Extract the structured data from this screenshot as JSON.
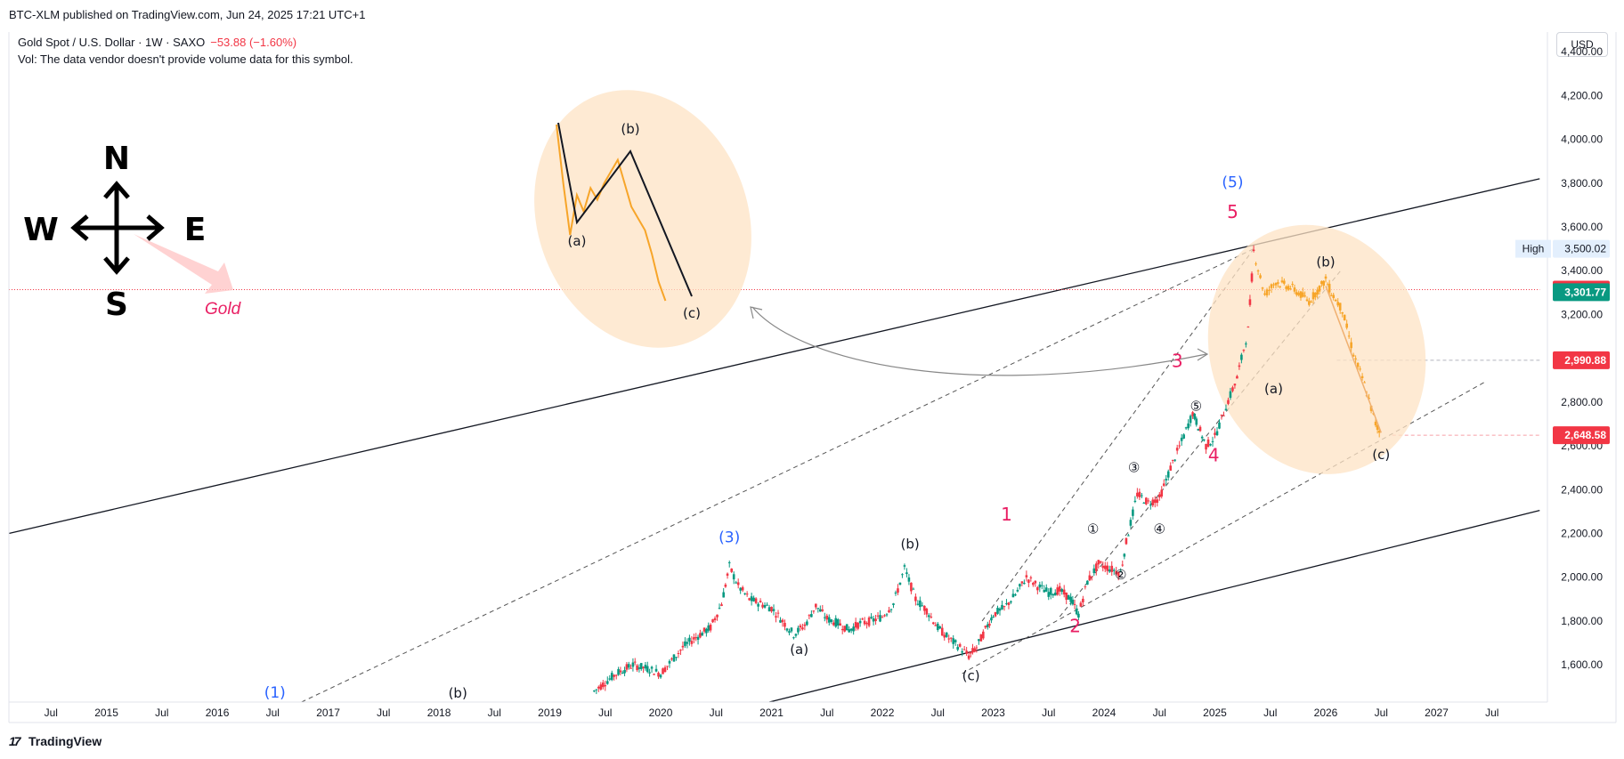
{
  "header": {
    "published": "BTC-XLM published on TradingView.com, Jun 24, 2025 17:21 UTC+1",
    "symbol": "Gold Spot / U.S. Dollar · 1W · SAXO",
    "change": "−53.88 (−1.60%)",
    "volume_note": "Vol: The data vendor doesn't provide volume data for this symbol.",
    "currency_button": "USD"
  },
  "footer": {
    "brand": "TradingView"
  },
  "compass": {
    "n": "N",
    "s": "S",
    "e": "E",
    "w": "W"
  },
  "gold_label": "Gold",
  "colors": {
    "up": "#089981",
    "down": "#f23645",
    "wave_red": "#e91e63",
    "wave_blue": "#2962ff",
    "ellipse": "#fde3c4",
    "orange_line": "#f7a529",
    "price_line_red": "#f23645",
    "price_line_green": "#089981"
  },
  "chart_data": {
    "type": "candlestick",
    "y_axis": {
      "ticks": [
        1600,
        1800,
        2000,
        2200,
        2400,
        2600,
        2800,
        3000,
        3200,
        3400,
        3600,
        3800,
        4000,
        4200,
        4400
      ],
      "tick_labels": [
        "1,600.00",
        "1,800.00",
        "2,000.00",
        "2,200.00",
        "2,400.00",
        "2,600.00",
        "2,800.00",
        "3,000.00",
        "3,200.00",
        "3,400.00",
        "3,600.00",
        "3,800.00",
        "4,000.00",
        "4,200.00",
        "4,400.00"
      ],
      "range": [
        1430,
        4490
      ]
    },
    "x_axis": {
      "tick_labels": [
        "Jul",
        "2015",
        "Jul",
        "2016",
        "Jul",
        "2017",
        "Jul",
        "2018",
        "Jul",
        "2019",
        "Jul",
        "2020",
        "Jul",
        "2021",
        "Jul",
        "2022",
        "Jul",
        "2023",
        "Jul",
        "2024",
        "Jul",
        "2025",
        "Jul",
        "2026",
        "Jul",
        "2027",
        "Jul"
      ],
      "range": [
        2014.12,
        2028.0
      ]
    },
    "price_labels": [
      {
        "label": "High",
        "value": 3500.02,
        "text": "3,500.02",
        "style": "high"
      },
      {
        "value": 3313.72,
        "text": "3,313.72",
        "style": "red"
      },
      {
        "value": 3301.77,
        "text": "3,301.77",
        "style": "green"
      },
      {
        "value": 2990.88,
        "text": "2,990.88",
        "style": "red"
      },
      {
        "value": 2648.58,
        "text": "2,648.58",
        "style": "red"
      }
    ],
    "price_path": [
      [
        2019.4,
        1480
      ],
      [
        2019.5,
        1520
      ],
      [
        2019.6,
        1560
      ],
      [
        2019.75,
        1600
      ],
      [
        2019.9,
        1580
      ],
      [
        2020.0,
        1560
      ],
      [
        2020.1,
        1620
      ],
      [
        2020.2,
        1680
      ],
      [
        2020.3,
        1720
      ],
      [
        2020.45,
        1770
      ],
      [
        2020.55,
        1880
      ],
      [
        2020.62,
        2050
      ],
      [
        2020.7,
        1960
      ],
      [
        2020.8,
        1900
      ],
      [
        2020.9,
        1880
      ],
      [
        2021.0,
        1860
      ],
      [
        2021.1,
        1800
      ],
      [
        2021.2,
        1740
      ],
      [
        2021.3,
        1780
      ],
      [
        2021.4,
        1870
      ],
      [
        2021.5,
        1810
      ],
      [
        2021.6,
        1790
      ],
      [
        2021.7,
        1760
      ],
      [
        2021.8,
        1790
      ],
      [
        2021.9,
        1800
      ],
      [
        2022.0,
        1820
      ],
      [
        2022.1,
        1880
      ],
      [
        2022.2,
        2040
      ],
      [
        2022.3,
        1900
      ],
      [
        2022.4,
        1850
      ],
      [
        2022.5,
        1770
      ],
      [
        2022.6,
        1720
      ],
      [
        2022.7,
        1680
      ],
      [
        2022.78,
        1640
      ],
      [
        2022.85,
        1680
      ],
      [
        2022.95,
        1780
      ],
      [
        2023.0,
        1830
      ],
      [
        2023.1,
        1860
      ],
      [
        2023.2,
        1920
      ],
      [
        2023.3,
        2000
      ],
      [
        2023.4,
        1960
      ],
      [
        2023.5,
        1930
      ],
      [
        2023.6,
        1940
      ],
      [
        2023.7,
        1900
      ],
      [
        2023.77,
        1830
      ],
      [
        2023.85,
        1980
      ],
      [
        2023.95,
        2060
      ],
      [
        2024.05,
        2040
      ],
      [
        2024.15,
        2020
      ],
      [
        2024.2,
        2160
      ],
      [
        2024.3,
        2380
      ],
      [
        2024.4,
        2340
      ],
      [
        2024.5,
        2360
      ],
      [
        2024.6,
        2500
      ],
      [
        2024.7,
        2620
      ],
      [
        2024.8,
        2750
      ],
      [
        2024.85,
        2690
      ],
      [
        2024.92,
        2600
      ],
      [
        2025.0,
        2640
      ],
      [
        2025.1,
        2780
      ],
      [
        2025.2,
        2910
      ],
      [
        2025.3,
        3130
      ],
      [
        2025.35,
        3490
      ],
      [
        2025.45,
        3290
      ],
      [
        2025.55,
        3350
      ],
      [
        2025.7,
        3320
      ],
      [
        2025.85,
        3260
      ],
      [
        2026.0,
        3360
      ],
      [
        2026.05,
        3300
      ],
      [
        2026.15,
        3220
      ],
      [
        2026.25,
        3020
      ],
      [
        2026.35,
        2880
      ],
      [
        2026.45,
        2700
      ],
      [
        2026.5,
        2650
      ]
    ],
    "inset_path": [
      [
        0.0,
        4150
      ],
      [
        0.05,
        3900
      ],
      [
        0.1,
        3680
      ],
      [
        0.15,
        3850
      ],
      [
        0.2,
        3780
      ],
      [
        0.25,
        3880
      ],
      [
        0.3,
        3830
      ],
      [
        0.35,
        3900
      ],
      [
        0.4,
        3950
      ],
      [
        0.45,
        4000
      ],
      [
        0.5,
        3900
      ],
      [
        0.55,
        3800
      ],
      [
        0.6,
        3750
      ],
      [
        0.65,
        3700
      ],
      [
        0.7,
        3600
      ],
      [
        0.75,
        3480
      ],
      [
        0.8,
        3400
      ]
    ],
    "wave_labels": [
      {
        "text": "(1)",
        "x": 2016.52,
        "y": 1450,
        "color": "blue"
      },
      {
        "text": "(b)",
        "x": 2018.17,
        "y": 1450,
        "color": "black"
      },
      {
        "text": "(3)",
        "x": 2020.62,
        "y": 2160,
        "color": "blue"
      },
      {
        "text": "(a)",
        "x": 2021.25,
        "y": 1650,
        "color": "black"
      },
      {
        "text": "(b)",
        "x": 2022.25,
        "y": 2130,
        "color": "black"
      },
      {
        "text": "(c)",
        "x": 2022.8,
        "y": 1530,
        "color": "black"
      },
      {
        "text": "1",
        "x": 2023.12,
        "y": 2260,
        "color": "red"
      },
      {
        "text": "2",
        "x": 2023.74,
        "y": 1750,
        "color": "red"
      },
      {
        "text": "①",
        "x": 2023.9,
        "y": 2200,
        "color": "black"
      },
      {
        "text": "②",
        "x": 2024.15,
        "y": 1990,
        "color": "black"
      },
      {
        "text": "③",
        "x": 2024.27,
        "y": 2480,
        "color": "black"
      },
      {
        "text": "④",
        "x": 2024.5,
        "y": 2200,
        "color": "black"
      },
      {
        "text": "⑤",
        "x": 2024.83,
        "y": 2760,
        "color": "black"
      },
      {
        "text": "3",
        "x": 2024.66,
        "y": 2960,
        "color": "red"
      },
      {
        "text": "4",
        "x": 2024.99,
        "y": 2530,
        "color": "red"
      },
      {
        "text": "(5)",
        "x": 2025.16,
        "y": 3780,
        "color": "blue"
      },
      {
        "text": "5",
        "x": 2025.16,
        "y": 3640,
        "color": "red"
      },
      {
        "text": "(a)",
        "x": 2025.53,
        "y": 2840,
        "color": "black"
      },
      {
        "text": "(b)",
        "x": 2026.0,
        "y": 3420,
        "color": "black"
      },
      {
        "text": "(c)",
        "x": 2026.5,
        "y": 2540,
        "color": "black"
      }
    ],
    "inset_labels": [
      {
        "text": "(a)",
        "pos": "a"
      },
      {
        "text": "(b)",
        "pos": "b"
      },
      {
        "text": "(c)",
        "pos": "c"
      }
    ]
  }
}
